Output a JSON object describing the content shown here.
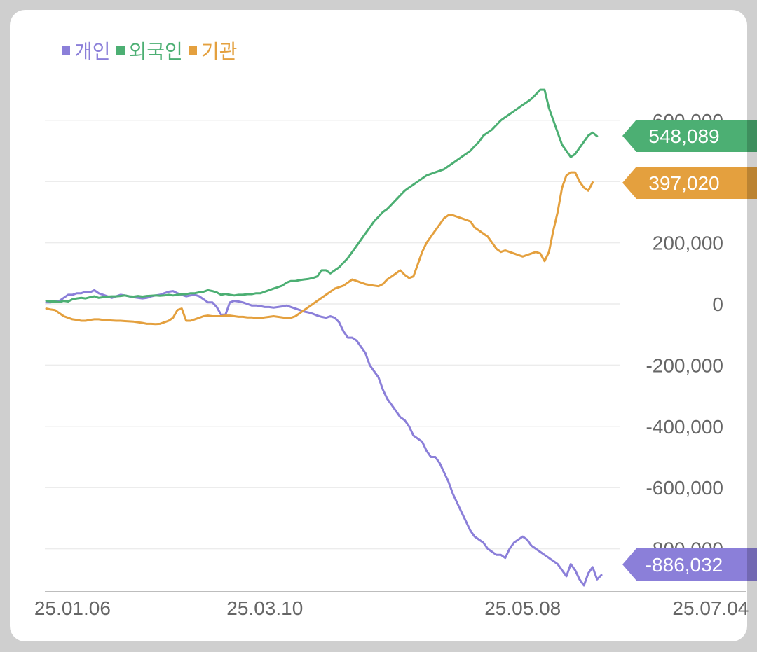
{
  "chart_data": {
    "type": "line",
    "title": "",
    "xlabel": "",
    "ylabel": "",
    "ylim": [
      -960000,
      720000
    ],
    "y_ticks": [
      600000,
      400000,
      200000,
      0,
      -200000,
      -400000,
      -600000,
      -800000
    ],
    "y_tick_labels": [
      "600,000",
      "400,000",
      "200,000",
      "0",
      "-200,000",
      "-400,000",
      "-600,000",
      "-800,000"
    ],
    "x_tick_labels": [
      {
        "label": "25.01.06",
        "index": 6
      },
      {
        "label": "25.03.10",
        "index": 50
      },
      {
        "label": "25.05.08",
        "index": 109
      },
      {
        "label": "25.07.04",
        "index": 152
      }
    ],
    "grid": true,
    "legend": "top-left",
    "series": [
      {
        "name": "개인",
        "color": "#8b7fd9",
        "end_label": "-886,032",
        "values": [
          5000,
          5000,
          10000,
          10000,
          20000,
          30000,
          30000,
          35000,
          35000,
          40000,
          38000,
          45000,
          35000,
          30000,
          25000,
          20000,
          25000,
          30000,
          28000,
          25000,
          22000,
          20000,
          18000,
          20000,
          25000,
          28000,
          30000,
          35000,
          40000,
          42000,
          35000,
          30000,
          25000,
          28000,
          30000,
          25000,
          15000,
          5000,
          5000,
          -10000,
          -35000,
          -35000,
          5000,
          10000,
          8000,
          5000,
          0,
          -5000,
          -5000,
          -7000,
          -10000,
          -10000,
          -12000,
          -10000,
          -8000,
          -5000,
          -10000,
          -15000,
          -20000,
          -25000,
          -28000,
          -32000,
          -38000,
          -42000,
          -45000,
          -40000,
          -45000,
          -60000,
          -90000,
          -110000,
          -110000,
          -120000,
          -140000,
          -160000,
          -200000,
          -220000,
          -240000,
          -280000,
          -310000,
          -330000,
          -350000,
          -370000,
          -380000,
          -400000,
          -430000,
          -440000,
          -450000,
          -480000,
          -500000,
          -500000,
          -520000,
          -550000,
          -580000,
          -620000,
          -650000,
          -680000,
          -710000,
          -740000,
          -760000,
          -770000,
          -780000,
          -800000,
          -810000,
          -820000,
          -820000,
          -830000,
          -800000,
          -780000,
          -770000,
          -760000,
          -770000,
          -790000,
          -800000,
          -810000,
          -820000,
          -830000,
          -840000,
          -850000,
          -870000,
          -890000,
          -850000,
          -870000,
          -900000,
          -920000,
          -880000,
          -860000,
          -900000,
          -886032
        ]
      },
      {
        "name": "외국인",
        "color": "#4caf73",
        "end_label": "548,089",
        "values": [
          10000,
          8000,
          8000,
          6000,
          10000,
          8000,
          15000,
          18000,
          20000,
          18000,
          22000,
          25000,
          20000,
          22000,
          24000,
          25000,
          25000,
          26000,
          28000,
          25000,
          24000,
          26000,
          24000,
          26000,
          27000,
          28000,
          27000,
          28000,
          30000,
          28000,
          30000,
          32000,
          32000,
          35000,
          35000,
          38000,
          40000,
          45000,
          42000,
          38000,
          30000,
          33000,
          30000,
          28000,
          30000,
          30000,
          32000,
          32000,
          35000,
          35000,
          40000,
          45000,
          50000,
          55000,
          60000,
          70000,
          75000,
          75000,
          78000,
          80000,
          82000,
          85000,
          90000,
          110000,
          110000,
          100000,
          110000,
          120000,
          135000,
          150000,
          170000,
          190000,
          210000,
          230000,
          250000,
          270000,
          285000,
          300000,
          310000,
          325000,
          340000,
          355000,
          370000,
          380000,
          390000,
          400000,
          410000,
          420000,
          425000,
          430000,
          435000,
          440000,
          450000,
          460000,
          470000,
          480000,
          490000,
          500000,
          515000,
          530000,
          550000,
          560000,
          570000,
          585000,
          600000,
          610000,
          620000,
          630000,
          640000,
          650000,
          660000,
          670000,
          685000,
          700000,
          700000,
          640000,
          600000,
          560000,
          520000,
          500000,
          480000,
          490000,
          510000,
          530000,
          550000,
          560000,
          548089
        ]
      },
      {
        "name": "기관",
        "color": "#e4a03e",
        "end_label": "397,020",
        "values": [
          -15000,
          -18000,
          -20000,
          -30000,
          -40000,
          -45000,
          -50000,
          -52000,
          -55000,
          -55000,
          -52000,
          -50000,
          -50000,
          -52000,
          -53000,
          -54000,
          -55000,
          -55000,
          -56000,
          -57000,
          -58000,
          -60000,
          -62000,
          -65000,
          -65000,
          -66000,
          -65000,
          -60000,
          -55000,
          -45000,
          -20000,
          -15000,
          -55000,
          -55000,
          -50000,
          -45000,
          -40000,
          -38000,
          -40000,
          -40000,
          -40000,
          -38000,
          -38000,
          -40000,
          -42000,
          -42000,
          -44000,
          -44000,
          -46000,
          -46000,
          -44000,
          -42000,
          -40000,
          -42000,
          -44000,
          -46000,
          -45000,
          -40000,
          -30000,
          -20000,
          -10000,
          0,
          10000,
          20000,
          30000,
          40000,
          50000,
          55000,
          60000,
          70000,
          80000,
          75000,
          70000,
          65000,
          62000,
          60000,
          58000,
          65000,
          80000,
          90000,
          100000,
          110000,
          95000,
          85000,
          90000,
          130000,
          170000,
          200000,
          220000,
          240000,
          260000,
          280000,
          290000,
          290000,
          285000,
          280000,
          275000,
          270000,
          250000,
          240000,
          230000,
          220000,
          200000,
          180000,
          170000,
          175000,
          170000,
          165000,
          160000,
          155000,
          160000,
          165000,
          170000,
          165000,
          140000,
          170000,
          240000,
          300000,
          380000,
          420000,
          430000,
          430000,
          400000,
          380000,
          370000,
          397020
        ]
      }
    ]
  }
}
